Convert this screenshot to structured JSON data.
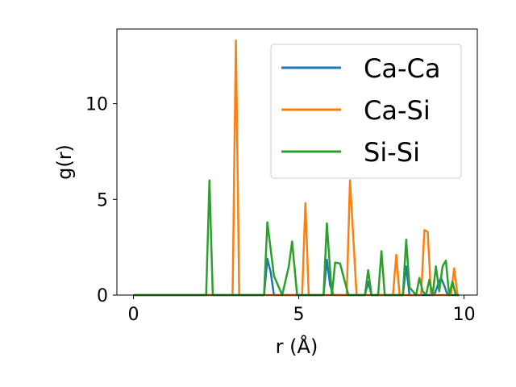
{
  "chart_data": {
    "type": "line",
    "xlabel": "r (Å)",
    "ylabel": "g(r)",
    "xlim": [
      -0.5,
      10.4
    ],
    "ylim": [
      0,
      13.9
    ],
    "xticks": [
      "0",
      "5",
      "10"
    ],
    "yticks": [
      "0",
      "5",
      "10"
    ],
    "grid": false,
    "legend_position": "top-right",
    "series": [
      {
        "name": "Ca-Ca",
        "color": "#1f77b4",
        "x": [
          0,
          3.95,
          4.05,
          4.15,
          4.25,
          5.75,
          5.85,
          5.95,
          6.05,
          7.0,
          7.1,
          7.2,
          8.15,
          8.25,
          8.35,
          9.1,
          9.2,
          9.3,
          9.4,
          9.5,
          9.85
        ],
        "y": [
          0,
          0,
          1.9,
          1.2,
          0,
          0,
          1.85,
          0.5,
          0,
          0,
          0.7,
          0,
          0,
          1.5,
          0,
          0,
          0.5,
          0.9,
          0.5,
          0,
          0
        ]
      },
      {
        "name": "Ca-Si",
        "color": "#ff7f0e",
        "x": [
          0,
          3.0,
          3.1,
          3.2,
          5.1,
          5.2,
          5.3,
          6.45,
          6.55,
          6.75,
          7.85,
          7.95,
          8.05,
          8.7,
          8.8,
          8.9,
          9.0,
          9.6,
          9.7,
          9.8,
          9.85
        ],
        "y": [
          0,
          0,
          13.3,
          0,
          0,
          4.8,
          0,
          0,
          6.0,
          0,
          0,
          2.1,
          0,
          0,
          3.4,
          3.3,
          0,
          0,
          1.4,
          0,
          0
        ]
      },
      {
        "name": "Si-Si",
        "color": "#2ca02c",
        "x": [
          0,
          2.2,
          2.3,
          2.4,
          3.95,
          4.05,
          4.25,
          4.5,
          4.7,
          4.8,
          4.95,
          5.75,
          5.85,
          6.0,
          6.1,
          6.25,
          6.5,
          7.0,
          7.1,
          7.2,
          7.4,
          7.5,
          7.6,
          8.15,
          8.25,
          8.35,
          8.55,
          8.65,
          8.75,
          8.85,
          8.95,
          9.05,
          9.15,
          9.25,
          9.35,
          9.45,
          9.55,
          9.65,
          9.75,
          9.85
        ],
        "y": [
          0,
          0,
          6.0,
          0,
          0,
          3.8,
          1.0,
          0,
          1.5,
          2.8,
          0,
          0,
          3.75,
          0,
          1.7,
          1.65,
          0,
          0,
          1.3,
          0,
          0,
          2.3,
          0,
          0,
          2.9,
          0.4,
          0,
          0.9,
          0.2,
          0,
          0.8,
          0,
          1.5,
          0.2,
          1.5,
          1.8,
          0,
          0.7,
          0,
          0
        ]
      }
    ]
  }
}
